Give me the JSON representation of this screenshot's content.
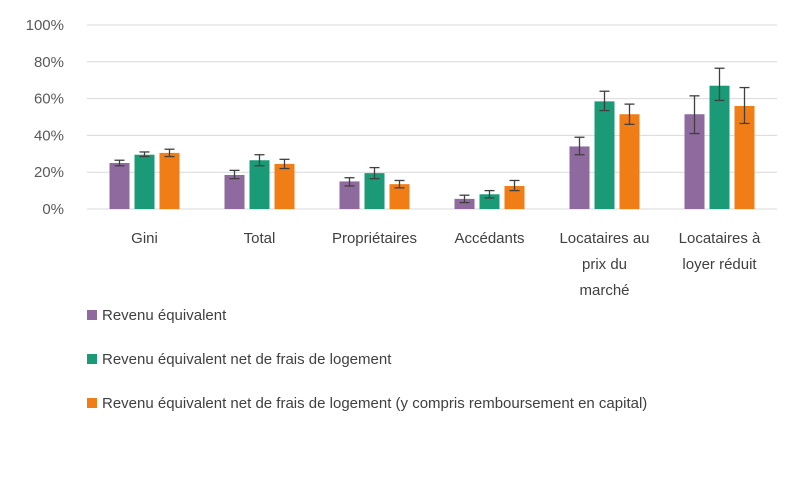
{
  "chart_data": {
    "type": "bar",
    "title": "",
    "xlabel": "",
    "ylabel": "",
    "ylim": [
      0,
      1
    ],
    "yticks": [
      "0%",
      "20%",
      "40%",
      "60%",
      "80%",
      "100%"
    ],
    "grid": true,
    "legend_position": "bottom",
    "categories": [
      [
        "Gini"
      ],
      [
        "Total"
      ],
      [
        "Propriétaires"
      ],
      [
        "Accédants"
      ],
      [
        "Locataires au",
        "prix du",
        "marché"
      ],
      [
        "Locataires à",
        "loyer réduit"
      ]
    ],
    "series": [
      {
        "name": "Revenu équivalent",
        "color": "#8e6a9f",
        "values": [
          0.25,
          0.185,
          0.15,
          0.055,
          0.34,
          0.515
        ],
        "err_low": [
          0.235,
          0.165,
          0.125,
          0.035,
          0.295,
          0.41
        ],
        "err_high": [
          0.265,
          0.21,
          0.17,
          0.075,
          0.39,
          0.615
        ]
      },
      {
        "name": "Revenu équivalent net de frais de logement",
        "color": "#1a9a77",
        "values": [
          0.295,
          0.265,
          0.195,
          0.08,
          0.585,
          0.67
        ],
        "err_low": [
          0.285,
          0.235,
          0.165,
          0.06,
          0.535,
          0.59
        ],
        "err_high": [
          0.31,
          0.295,
          0.225,
          0.1,
          0.64,
          0.765
        ]
      },
      {
        "name": "Revenu équivalent net de frais de logement (y compris remboursement en capital)",
        "color": "#f07d16",
        "values": [
          0.305,
          0.245,
          0.135,
          0.125,
          0.515,
          0.56
        ],
        "err_low": [
          0.285,
          0.22,
          0.115,
          0.1,
          0.46,
          0.465
        ],
        "err_high": [
          0.325,
          0.27,
          0.155,
          0.155,
          0.57,
          0.66
        ]
      }
    ]
  }
}
